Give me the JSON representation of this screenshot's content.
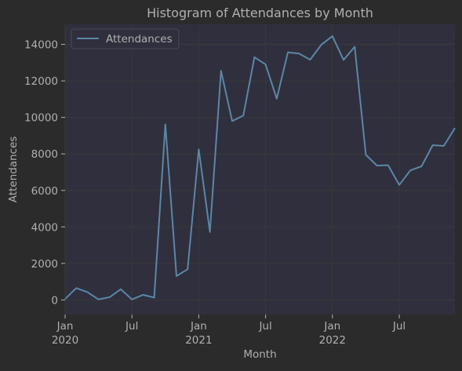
{
  "chart_data": {
    "type": "line",
    "title": "Histogram of Attendances by Month",
    "xlabel": "Month",
    "ylabel": "Attendances",
    "x": [
      "2020-01",
      "2020-02",
      "2020-03",
      "2020-04",
      "2020-05",
      "2020-06",
      "2020-07",
      "2020-08",
      "2020-09",
      "2020-10",
      "2020-11",
      "2020-12",
      "2021-01",
      "2021-02",
      "2021-03",
      "2021-04",
      "2021-05",
      "2021-06",
      "2021-07",
      "2021-08",
      "2021-09",
      "2021-10",
      "2021-11",
      "2021-12",
      "2022-01",
      "2022-02",
      "2022-03",
      "2022-04",
      "2022-05",
      "2022-06",
      "2022-07",
      "2022-08",
      "2022-09",
      "2022-10",
      "2022-11",
      "2022-12"
    ],
    "series": [
      {
        "name": "Attendances",
        "color": "#5b87a6",
        "values": [
          50,
          650,
          430,
          30,
          150,
          590,
          30,
          280,
          130,
          9620,
          1310,
          1680,
          8250,
          3720,
          12550,
          9800,
          10100,
          13300,
          12900,
          11020,
          13560,
          13500,
          13160,
          13980,
          14450,
          13150,
          13870,
          7950,
          7360,
          7380,
          6300,
          7100,
          7320,
          8480,
          8440,
          9420
        ]
      }
    ],
    "ylim": [
      -800,
      15100
    ],
    "yticks": [
      0,
      2000,
      4000,
      6000,
      8000,
      10000,
      12000,
      14000
    ],
    "xticks": [
      {
        "x": "2020-01",
        "label": "Jan",
        "sublabel": "2020"
      },
      {
        "x": "2020-07",
        "label": "Jul",
        "sublabel": ""
      },
      {
        "x": "2021-01",
        "label": "Jan",
        "sublabel": "2021"
      },
      {
        "x": "2021-07",
        "label": "Jul",
        "sublabel": ""
      },
      {
        "x": "2022-01",
        "label": "Jan",
        "sublabel": "2022"
      },
      {
        "x": "2022-07",
        "label": "Jul",
        "sublabel": ""
      }
    ],
    "grid": true,
    "legend": "top-left"
  },
  "colors": {
    "background": "#2b2b2b",
    "plot_background": "#2f2f3e",
    "text": "#b0b0b0",
    "grid": "#3a3a3a"
  }
}
